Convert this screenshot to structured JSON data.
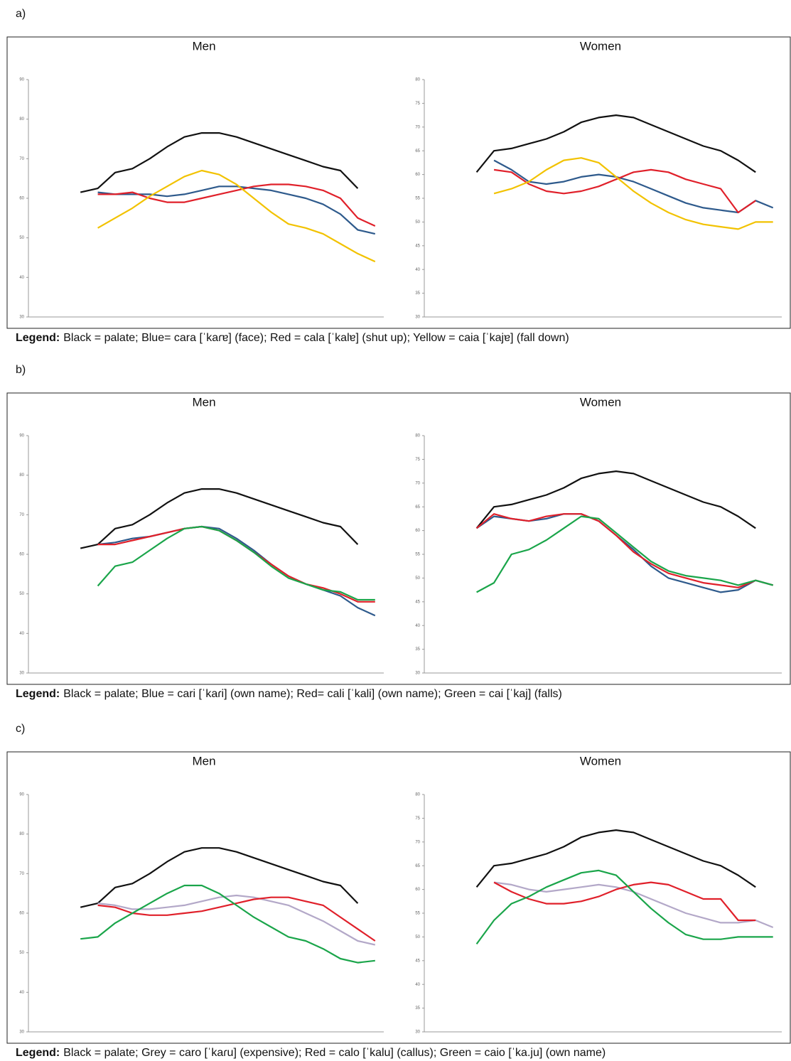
{
  "panels": [
    {
      "label": "a)",
      "legend_label": "Legend:",
      "legend": "Black = palate; Blue= cara [ˈkaɾɐ] (face); Red = cala [ˈkalɐ] (shut up); Yellow = caia [ˈkajɐ] (fall down)"
    },
    {
      "label": "b)",
      "legend_label": "Legend:",
      "legend": "Black = palate; Blue = cari [ˈkaɾi] (own name); Red= cali [ˈkali] (own name); Green = cai [ˈkaj] (falls)"
    },
    {
      "label": "c)",
      "legend_label": "Legend:",
      "legend": "Black = palate; Grey = caro [ˈkaɾu] (expensive); Red = calo [ˈkalu] (callus); Green = caio [ˈka.ju] (own name)"
    }
  ],
  "chart_data": [
    {
      "type": "line",
      "title": "Men",
      "x": [
        6,
        8,
        10,
        12,
        14,
        16,
        18,
        20,
        22,
        24,
        26,
        28,
        30,
        32,
        34,
        36,
        38,
        40
      ],
      "xlim": [
        0,
        41
      ],
      "ylim": [
        30,
        90
      ],
      "yticks": [
        30,
        40,
        50,
        60,
        70,
        80,
        90
      ],
      "series": [
        {
          "color": "#111111",
          "values": [
            61.5,
            62.5,
            66.5,
            67.5,
            70,
            73,
            75.5,
            76.5,
            76.5,
            75.5,
            74,
            72.5,
            71,
            69.5,
            68,
            67,
            62.5,
            null
          ]
        },
        {
          "color": "#2e5a8c",
          "values": [
            null,
            61.5,
            61,
            61,
            61,
            60.5,
            61,
            62,
            63,
            63,
            62.5,
            62,
            61,
            60,
            58.5,
            56,
            52,
            51
          ]
        },
        {
          "color": "#e0202a",
          "values": [
            null,
            61,
            61,
            61.5,
            60,
            59,
            59,
            60,
            61,
            62,
            63,
            63.5,
            63.5,
            63,
            62,
            60,
            55,
            53
          ]
        },
        {
          "color": "#f2c200",
          "values": [
            null,
            52.5,
            55,
            57.5,
            60.5,
            63,
            65.5,
            67,
            66,
            63.5,
            60,
            56.5,
            53.5,
            52.5,
            51,
            48.5,
            46,
            44
          ]
        }
      ]
    },
    {
      "type": "line",
      "title": "Women",
      "x": [
        6,
        8,
        10,
        12,
        14,
        16,
        18,
        20,
        22,
        24,
        26,
        28,
        30,
        32,
        34,
        36,
        38,
        40
      ],
      "xlim": [
        0,
        41
      ],
      "ylim": [
        30,
        80
      ],
      "yticks": [
        30,
        35,
        40,
        45,
        50,
        55,
        60,
        65,
        70,
        75,
        80
      ],
      "series": [
        {
          "color": "#111111",
          "values": [
            60.5,
            65,
            65.5,
            66.5,
            67.5,
            69,
            71,
            72,
            72.5,
            72,
            70.5,
            69,
            67.5,
            66,
            65,
            63,
            60.5,
            null
          ]
        },
        {
          "color": "#2e5a8c",
          "values": [
            null,
            63,
            61,
            58.5,
            58,
            58.5,
            59.5,
            60,
            59.5,
            58.5,
            57,
            55.5,
            54,
            53,
            52.5,
            52,
            54.5,
            53
          ]
        },
        {
          "color": "#e0202a",
          "values": [
            null,
            61,
            60.5,
            58,
            56.5,
            56,
            56.5,
            57.5,
            59,
            60.5,
            61,
            60.5,
            59,
            58,
            57,
            52,
            54.5,
            null
          ]
        },
        {
          "color": "#f2c200",
          "values": [
            null,
            56,
            57,
            58.5,
            61,
            63,
            63.5,
            62.5,
            59.5,
            56.5,
            54,
            52,
            50.5,
            49.5,
            49,
            48.5,
            50,
            50
          ]
        }
      ]
    },
    {
      "type": "line",
      "title": "Men",
      "x": [
        6,
        8,
        10,
        12,
        14,
        16,
        18,
        20,
        22,
        24,
        26,
        28,
        30,
        32,
        34,
        36,
        38,
        40
      ],
      "xlim": [
        0,
        41
      ],
      "ylim": [
        30,
        90
      ],
      "yticks": [
        30,
        40,
        50,
        60,
        70,
        80,
        90
      ],
      "series": [
        {
          "color": "#111111",
          "values": [
            61.5,
            62.5,
            66.5,
            67.5,
            70,
            73,
            75.5,
            76.5,
            76.5,
            75.5,
            74,
            72.5,
            71,
            69.5,
            68,
            67,
            62.5,
            null
          ]
        },
        {
          "color": "#2e5a8c",
          "values": [
            null,
            62.5,
            63,
            64,
            64.5,
            65.5,
            66.5,
            67,
            66.5,
            64,
            61,
            57.5,
            54.5,
            52.5,
            51,
            49.5,
            46.5,
            44.5
          ]
        },
        {
          "color": "#e0202a",
          "values": [
            null,
            62.5,
            62.5,
            63.5,
            64.5,
            65.5,
            66.5,
            67,
            66,
            63.5,
            60.5,
            57.5,
            54.5,
            52.5,
            51.5,
            50,
            48,
            48
          ]
        },
        {
          "color": "#1aa54a",
          "values": [
            null,
            52,
            57,
            58,
            61,
            64,
            66.5,
            67,
            66,
            63.5,
            60.5,
            57,
            54,
            52.5,
            51,
            50.5,
            48.5,
            48.5
          ]
        }
      ]
    },
    {
      "type": "line",
      "title": "Women",
      "x": [
        6,
        8,
        10,
        12,
        14,
        16,
        18,
        20,
        22,
        24,
        26,
        28,
        30,
        32,
        34,
        36,
        38,
        40
      ],
      "xlim": [
        0,
        41
      ],
      "ylim": [
        30,
        80
      ],
      "yticks": [
        30,
        35,
        40,
        45,
        50,
        55,
        60,
        65,
        70,
        75,
        80
      ],
      "series": [
        {
          "color": "#111111",
          "values": [
            60.5,
            65,
            65.5,
            66.5,
            67.5,
            69,
            71,
            72,
            72.5,
            72,
            70.5,
            69,
            67.5,
            66,
            65,
            63,
            60.5,
            null
          ]
        },
        {
          "color": "#2e5a8c",
          "values": [
            60.5,
            63,
            62.5,
            62,
            62.5,
            63.5,
            63.5,
            62,
            59,
            56,
            52.5,
            50,
            49,
            48,
            47,
            47.5,
            49.5,
            48.5
          ]
        },
        {
          "color": "#e0202a",
          "values": [
            60.5,
            63.5,
            62.5,
            62,
            63,
            63.5,
            63.5,
            62,
            59,
            55.5,
            53,
            51,
            50,
            49,
            48.5,
            48,
            49.5,
            48.5
          ]
        },
        {
          "color": "#1aa54a",
          "values": [
            47,
            49,
            55,
            56,
            58,
            60.5,
            63,
            62.5,
            59.5,
            56.5,
            53.5,
            51.5,
            50.5,
            50,
            49.5,
            48.5,
            49.5,
            48.5
          ]
        }
      ]
    },
    {
      "type": "line",
      "title": "Men",
      "x": [
        6,
        8,
        10,
        12,
        14,
        16,
        18,
        20,
        22,
        24,
        26,
        28,
        30,
        32,
        34,
        36,
        38,
        40
      ],
      "xlim": [
        0,
        41
      ],
      "ylim": [
        30,
        90
      ],
      "yticks": [
        30,
        40,
        50,
        60,
        70,
        80,
        90
      ],
      "series": [
        {
          "color": "#111111",
          "values": [
            61.5,
            62.5,
            66.5,
            67.5,
            70,
            73,
            75.5,
            76.5,
            76.5,
            75.5,
            74,
            72.5,
            71,
            69.5,
            68,
            67,
            62.5,
            null
          ]
        },
        {
          "color": "#b3a8c8",
          "values": [
            null,
            62.5,
            62,
            61,
            61,
            61.5,
            62,
            63,
            64,
            64.5,
            64,
            63,
            62,
            60,
            58,
            55.5,
            53,
            52
          ]
        },
        {
          "color": "#e0202a",
          "values": [
            null,
            62,
            61.5,
            60,
            59.5,
            59.5,
            60,
            60.5,
            61.5,
            62.5,
            63.5,
            64,
            64,
            63,
            62,
            59,
            56,
            53
          ]
        },
        {
          "color": "#1aa54a",
          "values": [
            53.5,
            54,
            57.5,
            60,
            62.5,
            65,
            67,
            67,
            65,
            62,
            59,
            56.5,
            54,
            53,
            51,
            48.5,
            47.5,
            48
          ]
        }
      ]
    },
    {
      "type": "line",
      "title": "Women",
      "x": [
        6,
        8,
        10,
        12,
        14,
        16,
        18,
        20,
        22,
        24,
        26,
        28,
        30,
        32,
        34,
        36,
        38,
        40
      ],
      "xlim": [
        0,
        41
      ],
      "ylim": [
        30,
        80
      ],
      "yticks": [
        30,
        35,
        40,
        45,
        50,
        55,
        60,
        65,
        70,
        75,
        80
      ],
      "series": [
        {
          "color": "#111111",
          "values": [
            60.5,
            65,
            65.5,
            66.5,
            67.5,
            69,
            71,
            72,
            72.5,
            72,
            70.5,
            69,
            67.5,
            66,
            65,
            63,
            60.5,
            null
          ]
        },
        {
          "color": "#b3a8c8",
          "values": [
            null,
            61.5,
            61,
            60,
            59.5,
            60,
            60.5,
            61,
            60.5,
            59.5,
            58,
            56.5,
            55,
            54,
            53,
            53,
            53.5,
            52
          ]
        },
        {
          "color": "#e0202a",
          "values": [
            null,
            61.5,
            59.5,
            58,
            57,
            57,
            57.5,
            58.5,
            60,
            61,
            61.5,
            61,
            59.5,
            58,
            58,
            53.5,
            53.5,
            null
          ]
        },
        {
          "color": "#1aa54a",
          "values": [
            48.5,
            53.5,
            57,
            58.5,
            60.5,
            62,
            63.5,
            64,
            63,
            59.5,
            56,
            53,
            50.5,
            49.5,
            49.5,
            50,
            50,
            50
          ]
        }
      ]
    }
  ]
}
